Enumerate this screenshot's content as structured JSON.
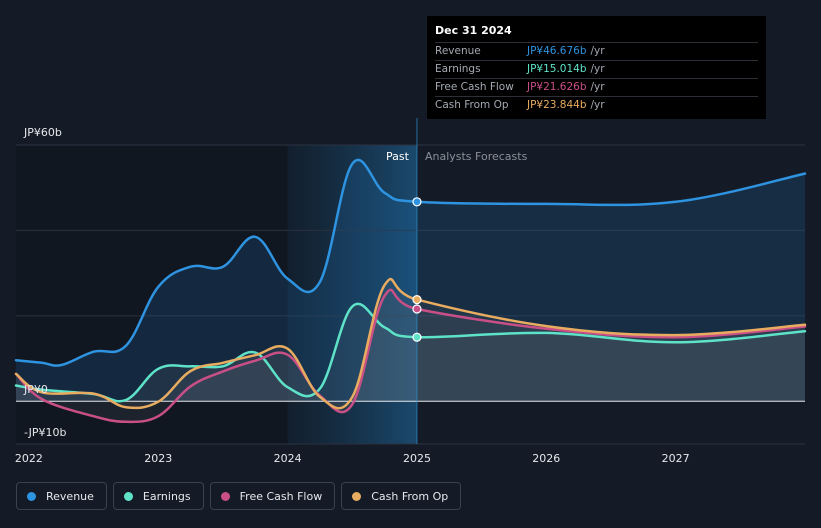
{
  "chart_data": {
    "type": "line",
    "y_axis": {
      "top_label": "JP¥60b",
      "zero_label": "JP¥0",
      "bottom_label": "-JP¥10b",
      "ylim": [
        -10,
        60
      ],
      "unit": "JP¥ billions"
    },
    "x_ticks": [
      "2022",
      "2023",
      "2024",
      "2025",
      "2026",
      "2027"
    ],
    "xlim": [
      2021.9,
      2028.0
    ],
    "regions": {
      "past_label": "Past",
      "forecast_label": "Analysts Forecasts",
      "divider_x": 2025.0
    },
    "series": [
      {
        "name": "Revenue",
        "color": "#2e93e0",
        "points": [
          [
            2021.9,
            9.6
          ],
          [
            2022.1,
            9.0
          ],
          [
            2022.25,
            8.5
          ],
          [
            2022.5,
            11.6
          ],
          [
            2022.75,
            13.0
          ],
          [
            2023.0,
            26.8
          ],
          [
            2023.25,
            31.5
          ],
          [
            2023.5,
            31.5
          ],
          [
            2023.75,
            38.5
          ],
          [
            2024.0,
            28.7
          ],
          [
            2024.25,
            28.0
          ],
          [
            2024.5,
            55.6
          ],
          [
            2024.75,
            48.8
          ],
          [
            2025.0,
            46.7
          ],
          [
            2026.0,
            46.2
          ],
          [
            2027.0,
            46.7
          ],
          [
            2028.0,
            53.3
          ]
        ]
      },
      {
        "name": "Earnings",
        "color": "#5fe3c8",
        "points": [
          [
            2021.9,
            3.7
          ],
          [
            2022.1,
            2.7
          ],
          [
            2022.5,
            1.7
          ],
          [
            2022.75,
            0.3
          ],
          [
            2023.0,
            7.6
          ],
          [
            2023.25,
            8.2
          ],
          [
            2023.5,
            8.2
          ],
          [
            2023.75,
            11.4
          ],
          [
            2024.0,
            3.3
          ],
          [
            2024.25,
            3.0
          ],
          [
            2024.5,
            22.2
          ],
          [
            2024.75,
            17.3
          ],
          [
            2025.0,
            15.0
          ],
          [
            2026.0,
            16.0
          ],
          [
            2027.0,
            13.8
          ],
          [
            2028.0,
            16.4
          ]
        ]
      },
      {
        "name": "Free Cash Flow",
        "color": "#c94f87",
        "points": [
          [
            2021.9,
            6.4
          ],
          [
            2022.1,
            0.5
          ],
          [
            2022.5,
            -3.5
          ],
          [
            2022.75,
            -4.8
          ],
          [
            2023.0,
            -3.5
          ],
          [
            2023.25,
            3.5
          ],
          [
            2023.5,
            7.0
          ],
          [
            2023.75,
            9.5
          ],
          [
            2024.0,
            10.9
          ],
          [
            2024.25,
            1.3
          ],
          [
            2024.5,
            -0.7
          ],
          [
            2024.75,
            24.7
          ],
          [
            2025.0,
            21.6
          ],
          [
            2026.0,
            17.0
          ],
          [
            2027.0,
            15.0
          ],
          [
            2028.0,
            17.5
          ]
        ]
      },
      {
        "name": "Cash From Op",
        "color": "#e8ac61",
        "points": [
          [
            2021.9,
            6.4
          ],
          [
            2022.1,
            2.1
          ],
          [
            2022.5,
            1.8
          ],
          [
            2022.75,
            -1.4
          ],
          [
            2023.0,
            -0.1
          ],
          [
            2023.25,
            7.1
          ],
          [
            2023.5,
            9.0
          ],
          [
            2023.75,
            10.8
          ],
          [
            2024.0,
            12.3
          ],
          [
            2024.25,
            1.0
          ],
          [
            2024.5,
            1.0
          ],
          [
            2024.75,
            27.2
          ],
          [
            2025.0,
            23.8
          ],
          [
            2026.0,
            17.6
          ],
          [
            2027.0,
            15.5
          ],
          [
            2028.0,
            17.9
          ]
        ]
      }
    ],
    "tooltip": {
      "date": "Dec 31 2024",
      "unit": "/yr",
      "rows": [
        {
          "label": "Revenue",
          "value": "JP¥46.676b",
          "color": "#2e93e0"
        },
        {
          "label": "Earnings",
          "value": "JP¥15.014b",
          "color": "#5fe3c8"
        },
        {
          "label": "Free Cash Flow",
          "value": "JP¥21.626b",
          "color": "#c94f87"
        },
        {
          "label": "Cash From Op",
          "value": "JP¥23.844b",
          "color": "#e8ac61"
        }
      ]
    }
  },
  "legend": [
    {
      "label": "Revenue",
      "color": "#2e93e0"
    },
    {
      "label": "Earnings",
      "color": "#5fe3c8"
    },
    {
      "label": "Free Cash Flow",
      "color": "#c94f87"
    },
    {
      "label": "Cash From Op",
      "color": "#e8ac61"
    }
  ]
}
